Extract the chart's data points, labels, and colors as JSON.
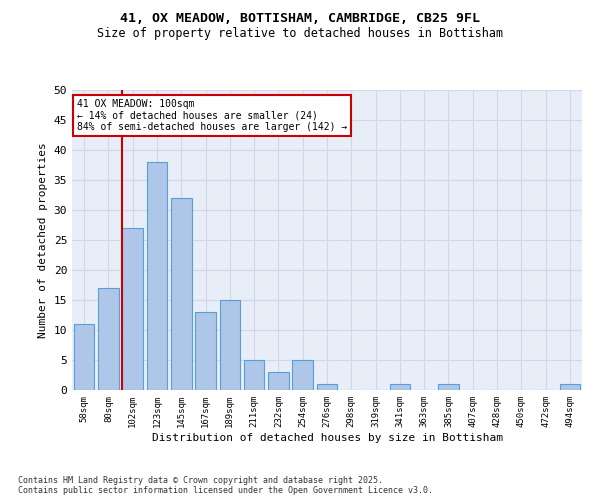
{
  "title_line1": "41, OX MEADOW, BOTTISHAM, CAMBRIDGE, CB25 9FL",
  "title_line2": "Size of property relative to detached houses in Bottisham",
  "xlabel": "Distribution of detached houses by size in Bottisham",
  "ylabel": "Number of detached properties",
  "categories": [
    "58sqm",
    "80sqm",
    "102sqm",
    "123sqm",
    "145sqm",
    "167sqm",
    "189sqm",
    "211sqm",
    "232sqm",
    "254sqm",
    "276sqm",
    "298sqm",
    "319sqm",
    "341sqm",
    "363sqm",
    "385sqm",
    "407sqm",
    "428sqm",
    "450sqm",
    "472sqm",
    "494sqm"
  ],
  "values": [
    11,
    17,
    27,
    38,
    32,
    13,
    15,
    5,
    3,
    5,
    1,
    0,
    0,
    1,
    0,
    1,
    0,
    0,
    0,
    0,
    1
  ],
  "bar_color": "#aec6e8",
  "bar_edge_color": "#5a9fd4",
  "vline_x_index": 2,
  "vline_color": "#cc0000",
  "annotation_text": "41 OX MEADOW: 100sqm\n← 14% of detached houses are smaller (24)\n84% of semi-detached houses are larger (142) →",
  "annotation_box_color": "#ffffff",
  "annotation_box_edge": "#cc0000",
  "ylim": [
    0,
    50
  ],
  "yticks": [
    0,
    5,
    10,
    15,
    20,
    25,
    30,
    35,
    40,
    45,
    50
  ],
  "grid_color": "#d0d8e8",
  "background_color": "#e8eef8",
  "footer_line1": "Contains HM Land Registry data © Crown copyright and database right 2025.",
  "footer_line2": "Contains public sector information licensed under the Open Government Licence v3.0."
}
